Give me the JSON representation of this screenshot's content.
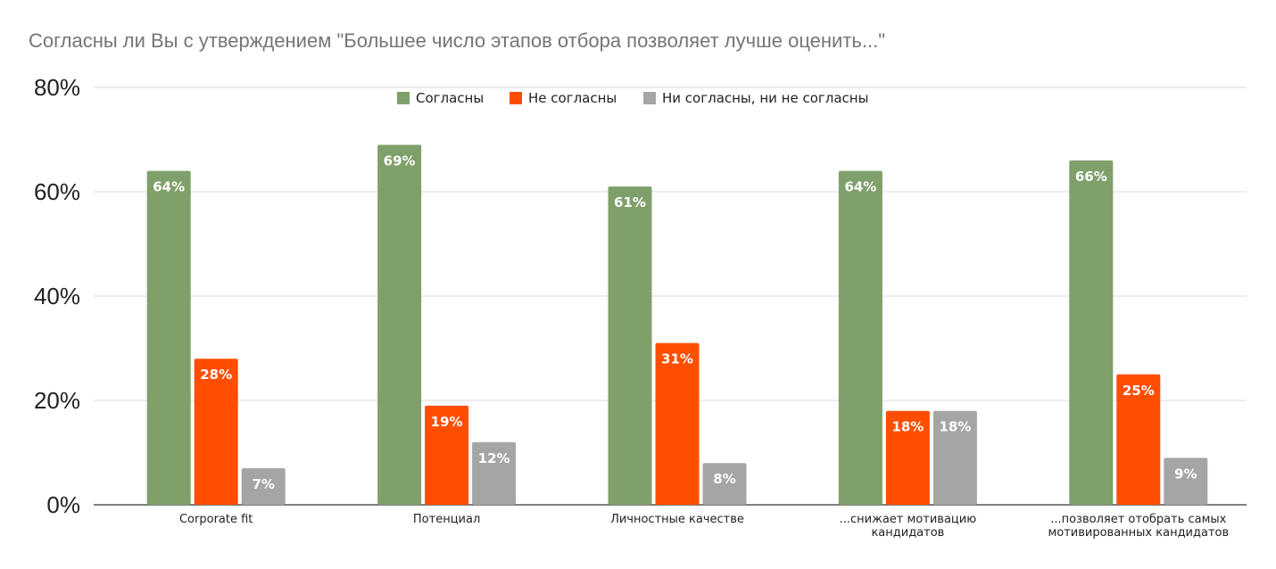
{
  "chart_data": {
    "type": "bar",
    "title": "Согласны ли Вы с утверждением \"Большее число этапов отбора позволяет лучше оценить...\"",
    "xlabel": "",
    "ylabel": "",
    "ylim": [
      0,
      80
    ],
    "yticks": [
      "0%",
      "20%",
      "40%",
      "60%",
      "80%"
    ],
    "ytick_values": [
      0,
      20,
      40,
      60,
      80
    ],
    "grid": true,
    "legend_position": "top-center",
    "categories": [
      [
        "Corporate fit"
      ],
      [
        "Потенциал"
      ],
      [
        "Личностные качестве"
      ],
      [
        "...снижает мотивацию",
        "кандидатов"
      ],
      [
        "...позволяет отобрать самых",
        "мотивированных кандидатов"
      ]
    ],
    "series": [
      {
        "name": "Согласны",
        "color": "#7fa06a",
        "values": [
          64,
          69,
          61,
          64,
          66
        ],
        "labels": [
          "64%",
          "69%",
          "61%",
          "64%",
          "66%"
        ]
      },
      {
        "name": "Не согласны",
        "color": "#ff4e00",
        "values": [
          28,
          19,
          31,
          18,
          25
        ],
        "labels": [
          "28%",
          "19%",
          "31%",
          "18%",
          "25%"
        ]
      },
      {
        "name": "Ни согласны, ни не согласны",
        "color": "#a5a5a5",
        "values": [
          7,
          12,
          8,
          18,
          9
        ],
        "labels": [
          "7%",
          "12%",
          "8%",
          "18%",
          "9%"
        ]
      }
    ]
  }
}
